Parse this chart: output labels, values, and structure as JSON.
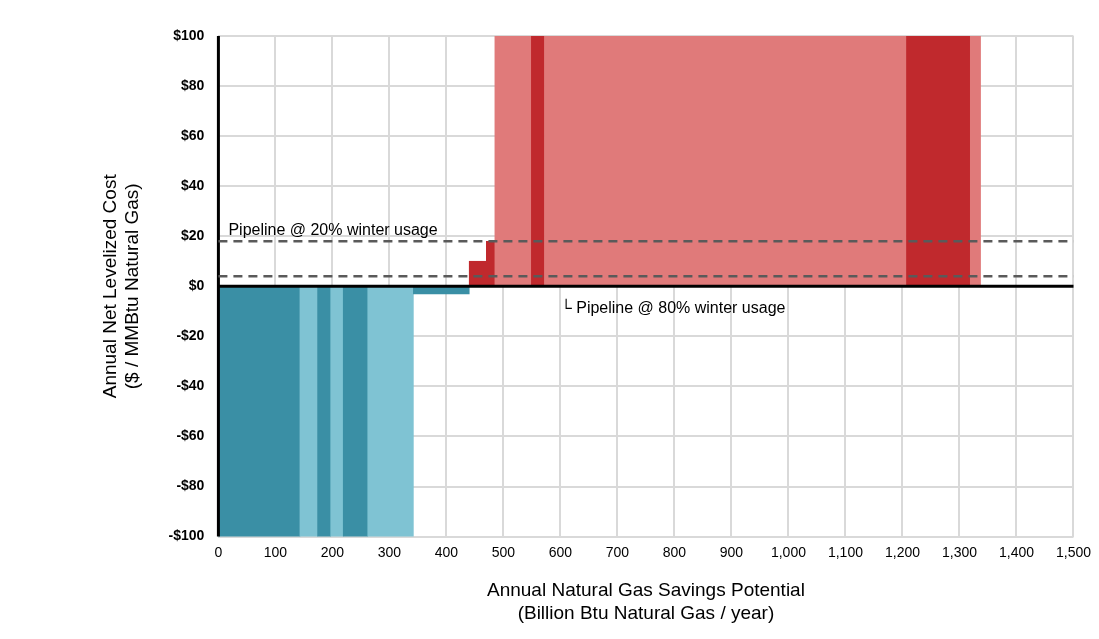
{
  "chart_data": {
    "type": "histogram",
    "xlabel": "Annual Natural Gas Savings Potential\n(Billion Btu Natural Gas / year)",
    "ylabel": "Annual Net Levelized Cost\n($ / MMBtu Natural Gas)",
    "bins": [
      0,
      143,
      174,
      197,
      219,
      262,
      342,
      440,
      470,
      485,
      520,
      549,
      572,
      1207,
      1319,
      1337
    ],
    "values": [
      -100,
      -100,
      -100,
      -100,
      -100,
      -100,
      -3,
      10,
      18,
      100,
      100,
      100,
      100,
      100,
      100
    ],
    "colors": [
      "#3a8fa5",
      "#7fc3d3",
      "#3a8fa5",
      "#7fc3d3",
      "#3a8fa5",
      "#7fc3d3",
      "#3a8fa5",
      "#c0292d",
      "#c0292d",
      "#e07a7a",
      "#e07a7a",
      "#c0292d",
      "#e07a7a",
      "#c0292d",
      "#e07a7a"
    ],
    "xlim": [
      0,
      1500
    ],
    "xticks": [
      0,
      100,
      200,
      300,
      400,
      500,
      600,
      700,
      800,
      900,
      {
        "value": 1000,
        "label": "1,000"
      },
      {
        "value": 1100,
        "label": "1,100"
      },
      {
        "value": 1200,
        "label": "1,200"
      },
      {
        "value": 1300,
        "label": "1,300"
      },
      {
        "value": 1400,
        "label": "1,400"
      },
      {
        "value": 1500,
        "label": "1,500"
      }
    ],
    "ylim": [
      -100,
      100
    ],
    "yticks": [
      {
        "value": -100,
        "label": "-$100"
      },
      {
        "value": -80,
        "label": "-$80"
      },
      {
        "value": -60,
        "label": "-$60"
      },
      {
        "value": -40,
        "label": "-$40"
      },
      {
        "value": -20,
        "label": "-$20"
      },
      {
        "value": 0,
        "label": "$0"
      },
      {
        "value": 20,
        "label": "$20"
      },
      {
        "value": 40,
        "label": "$40"
      },
      {
        "value": 60,
        "label": "$60"
      },
      {
        "value": 80,
        "label": "$80"
      },
      {
        "value": 100,
        "label": "$100"
      }
    ],
    "grid": true,
    "ref_lines": [
      {
        "axis": "y",
        "value": 18,
        "label": "Pipeline @ 20% winter usage",
        "color": "#5a5a5a",
        "line_style": "dashed"
      },
      {
        "axis": "y",
        "value": 4,
        "label": "└ Pipeline @ 80% winter usage",
        "color": "#5a5a5a",
        "line_style": "dashed"
      }
    ]
  }
}
